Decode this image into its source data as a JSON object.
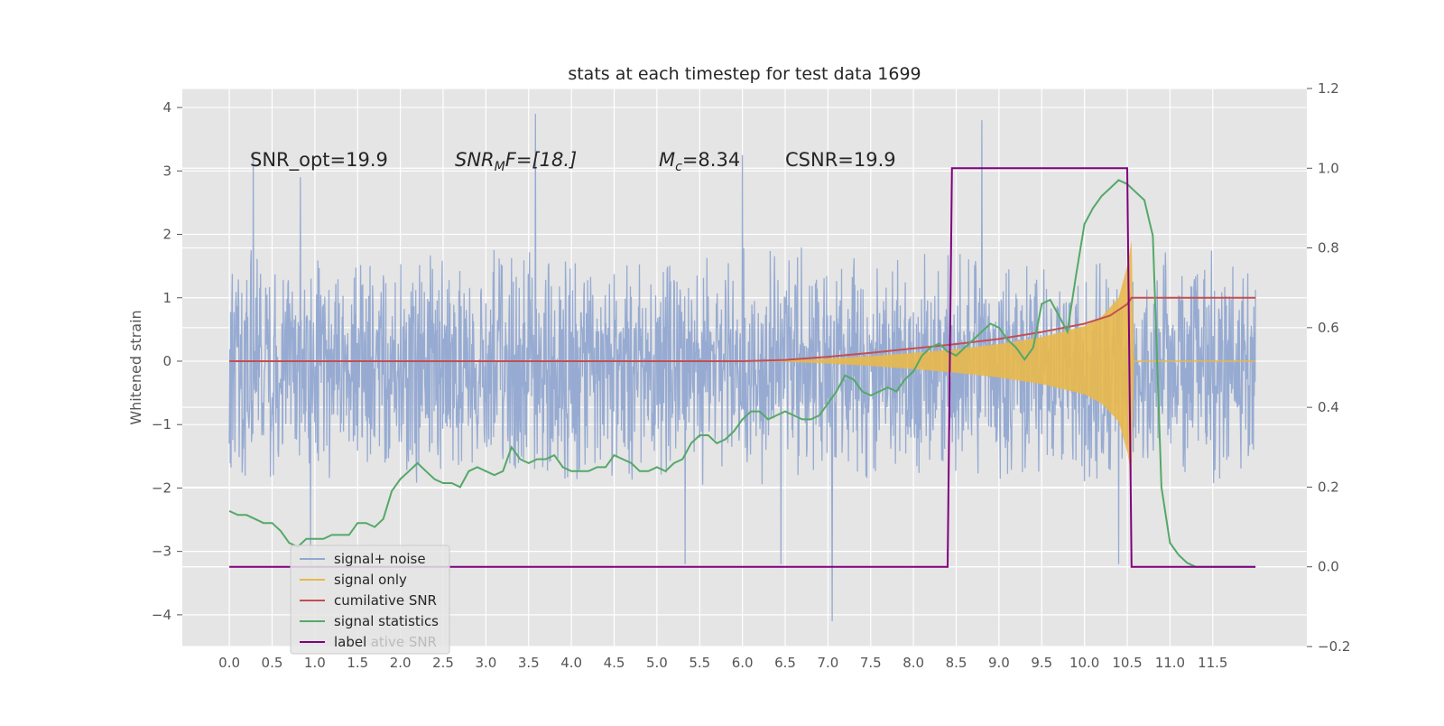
{
  "chart_data": {
    "type": "line",
    "title": "stats at each timestep for test data 1699",
    "xlabel": "",
    "ylabel": "Whitened strain",
    "ylabel_right": "",
    "xlim": [
      -0.55,
      12.6
    ],
    "ylim": [
      -4.5,
      4.3
    ],
    "ylim_right": [
      -0.2,
      1.2
    ],
    "x_ticks": [
      "0.0",
      "0.5",
      "1.0",
      "1.5",
      "2.0",
      "2.5",
      "3.0",
      "3.5",
      "4.0",
      "4.5",
      "5.0",
      "5.5",
      "6.0",
      "6.5",
      "7.0",
      "7.5",
      "8.0",
      "8.5",
      "9.0",
      "9.5",
      "10.0",
      "10.5",
      "11.0",
      "11.5"
    ],
    "y_ticks_left": [
      "4",
      "3",
      "2",
      "1",
      "0",
      "−1",
      "−2",
      "−3",
      "−4"
    ],
    "y_ticks_right": [
      "1.2",
      "1.0",
      "0.8",
      "0.6",
      "0.4",
      "0.2",
      "0.0",
      "−0.2"
    ],
    "grid": true,
    "legend_position": "lower-left",
    "annotations": {
      "snr_opt": "SNR_opt=19.9",
      "snr_mf_main": "SNR",
      "snr_mf_sub": "M",
      "snr_mf_rest": "F=[18.]",
      "mc_main": "M",
      "mc_sub": "c",
      "mc_rest": "=8.34",
      "csnr": "CSNR=19.9"
    },
    "series": [
      {
        "name": "signal+ noise",
        "color": "#92a8d1",
        "description_range": [
          -2.0,
          1.8
        ],
        "noise_amplitude": 0.65,
        "x_range": [
          0.0,
          12.0
        ],
        "spikes": [
          [
            0.28,
            3.3
          ],
          [
            0.83,
            2.9
          ],
          [
            3.58,
            3.9
          ],
          [
            6.0,
            3.25
          ],
          [
            8.8,
            3.8
          ],
          [
            7.05,
            -4.1
          ],
          [
            0.95,
            -3.2
          ],
          [
            5.33,
            -3.2
          ],
          [
            6.45,
            -3.2
          ],
          [
            10.4,
            -3.2
          ]
        ]
      },
      {
        "name": "signal only",
        "color": "#e8b84b",
        "envelope": [
          [
            6.2,
            0.0
          ],
          [
            6.5,
            0.01
          ],
          [
            7.0,
            0.04
          ],
          [
            7.5,
            0.08
          ],
          [
            8.0,
            0.13
          ],
          [
            8.5,
            0.19
          ],
          [
            9.0,
            0.27
          ],
          [
            9.5,
            0.38
          ],
          [
            10.0,
            0.55
          ],
          [
            10.2,
            0.7
          ],
          [
            10.4,
            1.0
          ],
          [
            10.5,
            1.5
          ],
          [
            10.55,
            1.9
          ],
          [
            10.58,
            0.0
          ]
        ],
        "tail": [
          [
            10.58,
            0.0
          ],
          [
            12.0,
            0.0
          ]
        ]
      },
      {
        "name": "cumilative SNR",
        "color": "#c44e52",
        "points": [
          [
            0.0,
            0.0
          ],
          [
            6.0,
            0.0
          ],
          [
            6.5,
            0.02
          ],
          [
            7.0,
            0.07
          ],
          [
            7.5,
            0.13
          ],
          [
            8.0,
            0.2
          ],
          [
            8.5,
            0.27
          ],
          [
            9.0,
            0.35
          ],
          [
            9.5,
            0.46
          ],
          [
            10.0,
            0.59
          ],
          [
            10.3,
            0.72
          ],
          [
            10.5,
            0.9
          ],
          [
            10.55,
            1.0
          ],
          [
            12.0,
            1.0
          ]
        ]
      },
      {
        "name": "signal statistics",
        "color": "#55a868",
        "axis": "right",
        "points": [
          [
            0.0,
            0.14
          ],
          [
            0.1,
            0.13
          ],
          [
            0.2,
            0.13
          ],
          [
            0.3,
            0.12
          ],
          [
            0.4,
            0.11
          ],
          [
            0.5,
            0.11
          ],
          [
            0.6,
            0.09
          ],
          [
            0.7,
            0.06
          ],
          [
            0.8,
            0.05
          ],
          [
            0.9,
            0.07
          ],
          [
            1.0,
            0.07
          ],
          [
            1.1,
            0.07
          ],
          [
            1.2,
            0.08
          ],
          [
            1.3,
            0.08
          ],
          [
            1.4,
            0.08
          ],
          [
            1.5,
            0.11
          ],
          [
            1.6,
            0.11
          ],
          [
            1.7,
            0.1
          ],
          [
            1.8,
            0.12
          ],
          [
            1.9,
            0.19
          ],
          [
            2.0,
            0.22
          ],
          [
            2.1,
            0.24
          ],
          [
            2.2,
            0.26
          ],
          [
            2.3,
            0.24
          ],
          [
            2.4,
            0.22
          ],
          [
            2.5,
            0.21
          ],
          [
            2.6,
            0.21
          ],
          [
            2.7,
            0.2
          ],
          [
            2.8,
            0.24
          ],
          [
            2.9,
            0.25
          ],
          [
            3.0,
            0.24
          ],
          [
            3.1,
            0.23
          ],
          [
            3.2,
            0.24
          ],
          [
            3.3,
            0.3
          ],
          [
            3.4,
            0.27
          ],
          [
            3.5,
            0.26
          ],
          [
            3.6,
            0.27
          ],
          [
            3.7,
            0.27
          ],
          [
            3.8,
            0.28
          ],
          [
            3.9,
            0.25
          ],
          [
            4.0,
            0.24
          ],
          [
            4.1,
            0.24
          ],
          [
            4.2,
            0.24
          ],
          [
            4.3,
            0.25
          ],
          [
            4.4,
            0.25
          ],
          [
            4.5,
            0.28
          ],
          [
            4.6,
            0.27
          ],
          [
            4.7,
            0.26
          ],
          [
            4.8,
            0.24
          ],
          [
            4.9,
            0.24
          ],
          [
            5.0,
            0.25
          ],
          [
            5.1,
            0.24
          ],
          [
            5.2,
            0.26
          ],
          [
            5.3,
            0.27
          ],
          [
            5.4,
            0.31
          ],
          [
            5.5,
            0.33
          ],
          [
            5.6,
            0.33
          ],
          [
            5.7,
            0.31
          ],
          [
            5.8,
            0.32
          ],
          [
            5.9,
            0.34
          ],
          [
            6.0,
            0.37
          ],
          [
            6.1,
            0.39
          ],
          [
            6.2,
            0.39
          ],
          [
            6.3,
            0.37
          ],
          [
            6.4,
            0.38
          ],
          [
            6.5,
            0.39
          ],
          [
            6.6,
            0.38
          ],
          [
            6.7,
            0.37
          ],
          [
            6.8,
            0.37
          ],
          [
            6.9,
            0.38
          ],
          [
            7.0,
            0.41
          ],
          [
            7.1,
            0.44
          ],
          [
            7.2,
            0.48
          ],
          [
            7.3,
            0.47
          ],
          [
            7.4,
            0.44
          ],
          [
            7.5,
            0.43
          ],
          [
            7.6,
            0.44
          ],
          [
            7.7,
            0.45
          ],
          [
            7.8,
            0.44
          ],
          [
            7.9,
            0.47
          ],
          [
            8.0,
            0.49
          ],
          [
            8.1,
            0.53
          ],
          [
            8.2,
            0.55
          ],
          [
            8.3,
            0.56
          ],
          [
            8.4,
            0.54
          ],
          [
            8.5,
            0.53
          ],
          [
            8.6,
            0.55
          ],
          [
            8.7,
            0.57
          ],
          [
            8.8,
            0.59
          ],
          [
            8.9,
            0.61
          ],
          [
            9.0,
            0.6
          ],
          [
            9.1,
            0.57
          ],
          [
            9.2,
            0.55
          ],
          [
            9.3,
            0.52
          ],
          [
            9.4,
            0.55
          ],
          [
            9.5,
            0.66
          ],
          [
            9.6,
            0.67
          ],
          [
            9.7,
            0.63
          ],
          [
            9.8,
            0.59
          ],
          [
            9.9,
            0.73
          ],
          [
            10.0,
            0.86
          ],
          [
            10.1,
            0.9
          ],
          [
            10.2,
            0.93
          ],
          [
            10.3,
            0.95
          ],
          [
            10.4,
            0.97
          ],
          [
            10.5,
            0.96
          ],
          [
            10.6,
            0.94
          ],
          [
            10.7,
            0.92
          ],
          [
            10.8,
            0.83
          ],
          [
            10.9,
            0.2
          ],
          [
            11.0,
            0.06
          ],
          [
            11.1,
            0.03
          ],
          [
            11.2,
            0.01
          ],
          [
            11.3,
            0.0
          ],
          [
            11.5,
            0.0
          ],
          [
            12.0,
            0.0
          ]
        ]
      },
      {
        "name": "label",
        "color": "#800080",
        "axis": "right",
        "points": [
          [
            0.0,
            0.0
          ],
          [
            8.4,
            0.0
          ],
          [
            8.45,
            1.0
          ],
          [
            10.5,
            1.0
          ],
          [
            10.55,
            0.0
          ],
          [
            12.0,
            0.0
          ]
        ]
      }
    ],
    "legend_ghost_text": "cumilative SNR"
  }
}
